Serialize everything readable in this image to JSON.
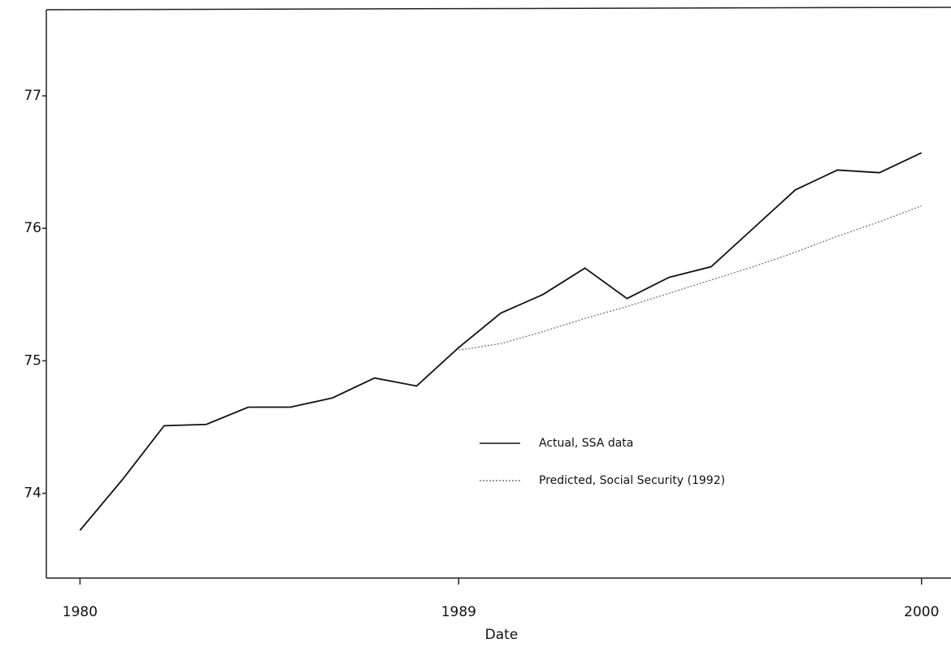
{
  "chart_data": {
    "type": "line",
    "x_label": "Date",
    "x": [
      1980,
      1981,
      1982,
      1983,
      1984,
      1985,
      1986,
      1987,
      1988,
      1989,
      1990,
      1991,
      1992,
      1993,
      1994,
      1995,
      1996,
      1997,
      1998,
      1999,
      2000
    ],
    "series": [
      {
        "name": "Actual, SSA data",
        "color": "#111111",
        "dash": "none",
        "values": [
          73.72,
          74.1,
          74.51,
          74.52,
          74.65,
          74.65,
          74.72,
          74.87,
          74.81,
          75.1,
          75.36,
          75.5,
          75.7,
          75.47,
          75.63,
          75.71,
          76.0,
          76.29,
          76.44,
          76.42,
          76.57
        ]
      },
      {
        "name": "Predicted, Social Security (1992)",
        "color": "#777777",
        "dash": "2,2",
        "values": [
          null,
          null,
          null,
          null,
          null,
          null,
          null,
          null,
          null,
          75.08,
          75.13,
          75.22,
          75.32,
          75.41,
          75.51,
          75.61,
          75.71,
          75.82,
          75.94,
          76.05,
          76.17
        ]
      }
    ],
    "xlim": [
      1979.2,
      2000.7
    ],
    "xticks": [
      1980,
      1989,
      2000
    ],
    "ylim": [
      73.36,
      77.65
    ],
    "yticks": [
      74,
      75,
      76,
      77
    ]
  }
}
